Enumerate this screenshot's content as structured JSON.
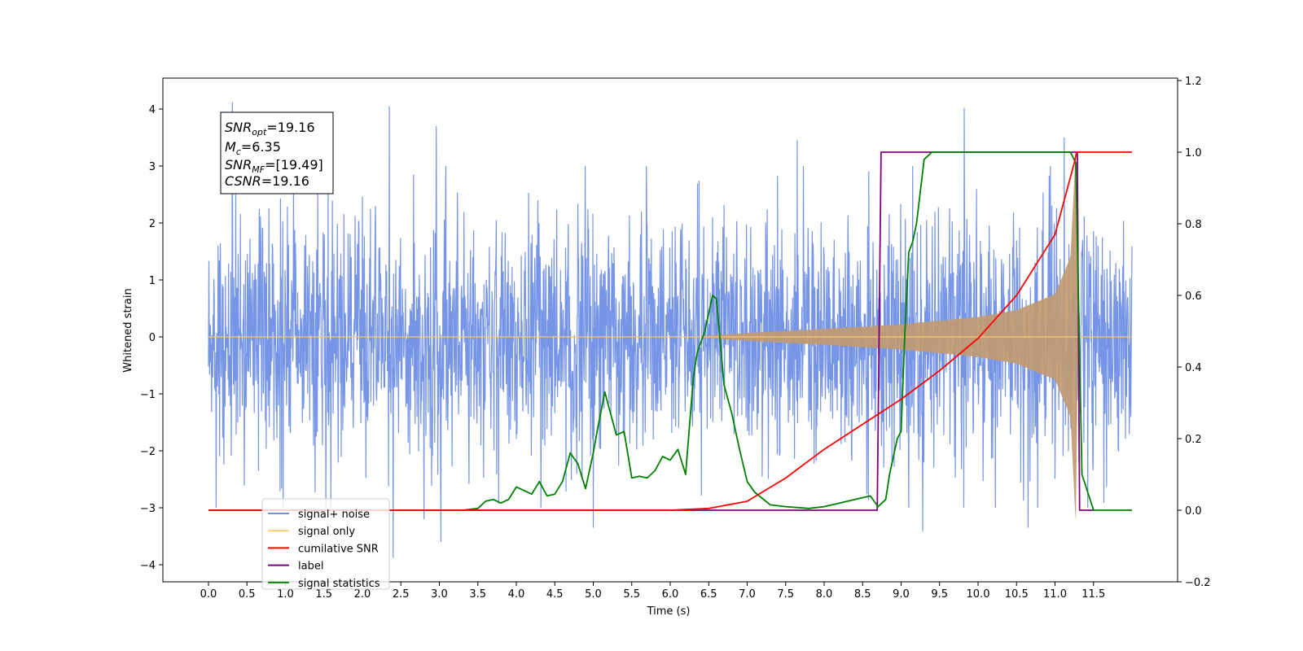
{
  "chart_data": {
    "type": "line",
    "xlabel": "Time (s)",
    "ylabel": "Whitened strain",
    "xlim": [
      -0.5,
      12.5
    ],
    "ylim": [
      -4.4,
      4.5
    ],
    "y2lim": [
      -0.2,
      1.2
    ],
    "x_ticks": [
      "0.0",
      "0.5",
      "1.0",
      "1.5",
      "2.0",
      "2.5",
      "3.0",
      "3.5",
      "4.0",
      "4.5",
      "5.0",
      "5.5",
      "6.0",
      "6.5",
      "7.0",
      "7.5",
      "8.0",
      "8.5",
      "9.0",
      "9.5",
      "10.0",
      "10.5",
      "11.0",
      "11.5"
    ],
    "y_ticks": [
      "4",
      "3",
      "2",
      "1",
      "0",
      "−1",
      "−2",
      "−3",
      "−4"
    ],
    "y2_ticks": [
      "1.2",
      "1.0",
      "0.8",
      "0.6",
      "0.4",
      "0.2",
      "0.0",
      "−0.2"
    ],
    "annotation": [
      {
        "base": "SNR",
        "sub": "opt",
        "value": "=19.16"
      },
      {
        "base": "M",
        "sub": "c",
        "value": "=6.35"
      },
      {
        "base": "SNR",
        "sub": "MF",
        "value": "=[19.49]"
      },
      {
        "base": "CSNR",
        "sub": "",
        "value": "=19.16"
      }
    ],
    "legend": [
      {
        "label": "signal+ noise",
        "color": "#6f8fe6"
      },
      {
        "label": "signal only",
        "color": "#ffc870"
      },
      {
        "label": "cumilative SNR",
        "color": "#ff0000"
      },
      {
        "label": "label",
        "color": "#800080"
      },
      {
        "label": "signal statistics",
        "color": "#008000"
      }
    ],
    "legend_position": "lower-left",
    "series": [
      {
        "name": "signal+ noise",
        "axis": "left",
        "color": "#6f8fe6",
        "description_of_shape": "dense gaussian noise around 0 with amplitude about ±2.5, spikes up to about 4.1 and down to about -3.9",
        "x_range": [
          0.0,
          12.0
        ],
        "spikes": [
          [
            0.31,
            4.12
          ],
          [
            2.35,
            4.05
          ],
          [
            2.96,
            3.7
          ],
          [
            9.82,
            4.02
          ],
          [
            7.65,
            3.45
          ],
          [
            11.12,
            3.5
          ],
          [
            2.4,
            -3.88
          ],
          [
            3.02,
            -3.6
          ],
          [
            9.28,
            -3.42
          ],
          [
            5.0,
            -3.35
          ],
          [
            10.65,
            -3.35
          ],
          [
            0.1,
            -3.0
          ],
          [
            2.8,
            -3.2
          ]
        ]
      },
      {
        "name": "signal only",
        "axis": "left",
        "color": "#ffc870",
        "envelope_x": [
          0.0,
          6.5,
          7.0,
          8.0,
          9.0,
          10.0,
          10.5,
          11.0,
          11.2,
          11.27,
          11.3,
          12.0
        ],
        "envelope_amp": [
          0.0,
          0.02,
          0.07,
          0.14,
          0.22,
          0.35,
          0.47,
          0.75,
          1.4,
          3.3,
          0.0,
          0.0
        ]
      },
      {
        "name": "cumilative SNR",
        "axis": "right",
        "color": "#ff0000",
        "x": [
          0.0,
          6.0,
          6.5,
          7.0,
          7.5,
          8.0,
          8.5,
          9.0,
          9.5,
          10.0,
          10.5,
          11.0,
          11.25,
          11.28,
          12.0
        ],
        "y": [
          0.0,
          0.0,
          0.005,
          0.025,
          0.09,
          0.17,
          0.24,
          0.31,
          0.39,
          0.48,
          0.6,
          0.77,
          0.97,
          1.0,
          1.0
        ]
      },
      {
        "name": "label",
        "axis": "right",
        "color": "#800080",
        "x": [
          0.0,
          8.69,
          8.74,
          11.29,
          11.32,
          11.5
        ],
        "y": [
          0.0,
          0.0,
          1.0,
          1.0,
          0.0,
          0.0
        ]
      },
      {
        "name": "signal statistics",
        "axis": "right",
        "color": "#008000",
        "x": [
          0.0,
          3.3,
          3.5,
          3.6,
          3.7,
          3.8,
          3.9,
          4.0,
          4.05,
          4.2,
          4.3,
          4.4,
          4.5,
          4.6,
          4.7,
          4.8,
          4.9,
          5.0,
          5.05,
          5.15,
          5.3,
          5.4,
          5.5,
          5.6,
          5.7,
          5.8,
          5.9,
          6.0,
          6.1,
          6.2,
          6.3,
          6.35,
          6.45,
          6.55,
          6.6,
          6.7,
          6.8,
          6.9,
          7.0,
          7.1,
          7.3,
          7.5,
          7.8,
          8.0,
          8.2,
          8.4,
          8.6,
          8.7,
          8.8,
          8.85,
          8.95,
          9.0,
          9.05,
          9.1,
          9.15,
          9.2,
          9.3,
          9.4,
          9.5,
          11.2,
          11.27,
          11.35,
          11.5,
          12.0
        ],
        "y": [
          0.0,
          0.0,
          0.005,
          0.025,
          0.03,
          0.02,
          0.03,
          0.065,
          0.06,
          0.045,
          0.08,
          0.04,
          0.045,
          0.08,
          0.16,
          0.13,
          0.06,
          0.16,
          0.22,
          0.33,
          0.21,
          0.22,
          0.09,
          0.095,
          0.09,
          0.11,
          0.15,
          0.14,
          0.17,
          0.1,
          0.37,
          0.44,
          0.5,
          0.6,
          0.59,
          0.35,
          0.27,
          0.17,
          0.08,
          0.05,
          0.015,
          0.01,
          0.005,
          0.01,
          0.02,
          0.03,
          0.04,
          0.01,
          0.03,
          0.1,
          0.2,
          0.22,
          0.5,
          0.72,
          0.75,
          0.8,
          0.98,
          1.0,
          1.0,
          1.0,
          0.97,
          0.1,
          0.0,
          0.0
        ]
      }
    ]
  }
}
